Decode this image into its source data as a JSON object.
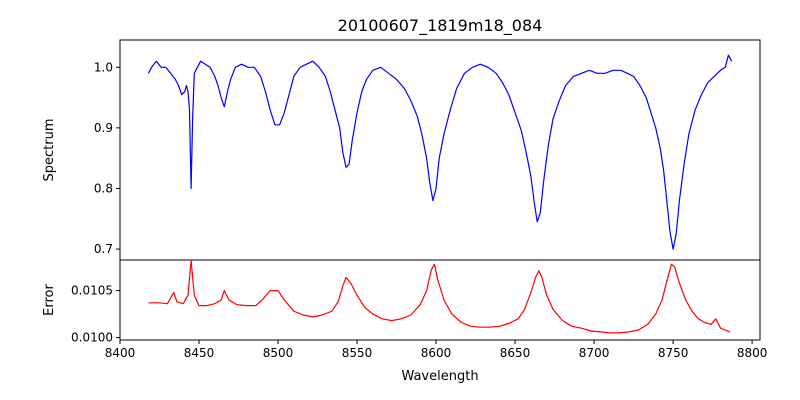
{
  "chart_data": {
    "type": "line",
    "title": "20100607_1819m18_084",
    "xlabel": "Wavelength",
    "xlim": [
      8400,
      8805
    ],
    "xticks": [
      8400,
      8450,
      8500,
      8550,
      8600,
      8650,
      8700,
      8750,
      8800
    ],
    "panels": [
      {
        "ylabel": "Spectrum",
        "ylim": [
          0.682,
          1.045
        ],
        "yticks": [
          0.7,
          0.8,
          0.9,
          1.0
        ],
        "ytick_labels": [
          "0.7",
          "0.8",
          "0.9",
          "1.0"
        ],
        "series": [
          {
            "color": "#0000ff",
            "points": [
              [
                8418,
                0.99
              ],
              [
                8420,
                1.0
              ],
              [
                8423,
                1.01
              ],
              [
                8426,
                1.0
              ],
              [
                8429,
                1.0
              ],
              [
                8432,
                0.99
              ],
              [
                8435,
                0.98
              ],
              [
                8437,
                0.97
              ],
              [
                8439,
                0.955
              ],
              [
                8441,
                0.96
              ],
              [
                8442,
                0.97
              ],
              [
                8443,
                0.96
              ],
              [
                8444,
                0.93
              ],
              [
                8445,
                0.8
              ],
              [
                8446,
                0.92
              ],
              [
                8447,
                0.99
              ],
              [
                8449,
                1.0
              ],
              [
                8451,
                1.01
              ],
              [
                8454,
                1.005
              ],
              [
                8457,
                1.0
              ],
              [
                8460,
                0.985
              ],
              [
                8462,
                0.97
              ],
              [
                8464,
                0.95
              ],
              [
                8466,
                0.935
              ],
              [
                8468,
                0.96
              ],
              [
                8470,
                0.98
              ],
              [
                8473,
                1.0
              ],
              [
                8477,
                1.005
              ],
              [
                8481,
                1.0
              ],
              [
                8485,
                1.0
              ],
              [
                8489,
                0.985
              ],
              [
                8492,
                0.96
              ],
              [
                8495,
                0.93
              ],
              [
                8498,
                0.905
              ],
              [
                8501,
                0.905
              ],
              [
                8504,
                0.925
              ],
              [
                8507,
                0.955
              ],
              [
                8510,
                0.985
              ],
              [
                8514,
                1.0
              ],
              [
                8518,
                1.005
              ],
              [
                8522,
                1.01
              ],
              [
                8526,
                1.0
              ],
              [
                8530,
                0.985
              ],
              [
                8533,
                0.96
              ],
              [
                8536,
                0.93
              ],
              [
                8539,
                0.9
              ],
              [
                8541,
                0.86
              ],
              [
                8543,
                0.835
              ],
              [
                8545,
                0.84
              ],
              [
                8547,
                0.88
              ],
              [
                8550,
                0.925
              ],
              [
                8553,
                0.96
              ],
              [
                8556,
                0.98
              ],
              [
                8560,
                0.995
              ],
              [
                8565,
                1.0
              ],
              [
                8570,
                0.99
              ],
              [
                8575,
                0.98
              ],
              [
                8580,
                0.965
              ],
              [
                8584,
                0.945
              ],
              [
                8588,
                0.92
              ],
              [
                8591,
                0.89
              ],
              [
                8594,
                0.85
              ],
              [
                8596,
                0.81
              ],
              [
                8598,
                0.78
              ],
              [
                8600,
                0.8
              ],
              [
                8602,
                0.85
              ],
              [
                8605,
                0.89
              ],
              [
                8609,
                0.93
              ],
              [
                8613,
                0.965
              ],
              [
                8618,
                0.99
              ],
              [
                8623,
                1.0
              ],
              [
                8628,
                1.005
              ],
              [
                8633,
                1.0
              ],
              [
                8638,
                0.99
              ],
              [
                8642,
                0.975
              ],
              [
                8646,
                0.955
              ],
              [
                8650,
                0.925
              ],
              [
                8654,
                0.895
              ],
              [
                8657,
                0.86
              ],
              [
                8660,
                0.82
              ],
              [
                8662,
                0.78
              ],
              [
                8664,
                0.745
              ],
              [
                8666,
                0.76
              ],
              [
                8668,
                0.81
              ],
              [
                8671,
                0.87
              ],
              [
                8674,
                0.915
              ],
              [
                8678,
                0.945
              ],
              [
                8682,
                0.97
              ],
              [
                8687,
                0.985
              ],
              [
                8692,
                0.99
              ],
              [
                8697,
                0.995
              ],
              [
                8702,
                0.99
              ],
              [
                8707,
                0.99
              ],
              [
                8712,
                0.995
              ],
              [
                8717,
                0.995
              ],
              [
                8721,
                0.99
              ],
              [
                8725,
                0.985
              ],
              [
                8729,
                0.97
              ],
              [
                8733,
                0.95
              ],
              [
                8736,
                0.925
              ],
              [
                8739,
                0.9
              ],
              [
                8742,
                0.865
              ],
              [
                8744,
                0.83
              ],
              [
                8746,
                0.78
              ],
              [
                8748,
                0.73
              ],
              [
                8750,
                0.7
              ],
              [
                8752,
                0.725
              ],
              [
                8754,
                0.78
              ],
              [
                8757,
                0.84
              ],
              [
                8760,
                0.89
              ],
              [
                8764,
                0.93
              ],
              [
                8768,
                0.955
              ],
              [
                8772,
                0.975
              ],
              [
                8776,
                0.985
              ],
              [
                8780,
                0.995
              ],
              [
                8783,
                1.0
              ],
              [
                8785,
                1.02
              ],
              [
                8787,
                1.01
              ]
            ]
          }
        ]
      },
      {
        "ylabel": "Error",
        "ylim": [
          0.009974,
          0.010825
        ],
        "yticks": [
          0.01,
          0.0105
        ],
        "ytick_labels": [
          "0.0100",
          "0.0105"
        ],
        "series": [
          {
            "color": "#ff0000",
            "points": [
              [
                8418,
                0.01037
              ],
              [
                8425,
                0.01037
              ],
              [
                8430,
                0.01036
              ],
              [
                8434,
                0.01048
              ],
              [
                8436,
                0.01038
              ],
              [
                8440,
                0.01036
              ],
              [
                8443,
                0.01045
              ],
              [
                8445,
                0.01082
              ],
              [
                8447,
                0.01045
              ],
              [
                8450,
                0.01034
              ],
              [
                8455,
                0.01034
              ],
              [
                8460,
                0.01036
              ],
              [
                8464,
                0.0104
              ],
              [
                8466,
                0.0105
              ],
              [
                8469,
                0.0104
              ],
              [
                8474,
                0.01035
              ],
              [
                8480,
                0.01034
              ],
              [
                8486,
                0.01034
              ],
              [
                8490,
                0.0104
              ],
              [
                8495,
                0.0105
              ],
              [
                8500,
                0.0105
              ],
              [
                8504,
                0.0104
              ],
              [
                8510,
                0.01028
              ],
              [
                8516,
                0.01024
              ],
              [
                8522,
                0.01022
              ],
              [
                8528,
                0.01024
              ],
              [
                8534,
                0.01028
              ],
              [
                8538,
                0.01038
              ],
              [
                8541,
                0.01055
              ],
              [
                8543,
                0.01064
              ],
              [
                8546,
                0.01058
              ],
              [
                8550,
                0.01045
              ],
              [
                8555,
                0.01032
              ],
              [
                8560,
                0.01025
              ],
              [
                8566,
                0.0102
              ],
              [
                8572,
                0.01018
              ],
              [
                8578,
                0.0102
              ],
              [
                8584,
                0.01024
              ],
              [
                8590,
                0.01035
              ],
              [
                8594,
                0.0105
              ],
              [
                8597,
                0.01072
              ],
              [
                8599,
                0.01078
              ],
              [
                8601,
                0.01062
              ],
              [
                8605,
                0.0104
              ],
              [
                8610,
                0.01025
              ],
              [
                8616,
                0.01016
              ],
              [
                8622,
                0.01012
              ],
              [
                8628,
                0.01011
              ],
              [
                8634,
                0.01011
              ],
              [
                8640,
                0.01012
              ],
              [
                8646,
                0.01015
              ],
              [
                8652,
                0.0102
              ],
              [
                8656,
                0.0103
              ],
              [
                8660,
                0.01048
              ],
              [
                8663,
                0.01064
              ],
              [
                8665,
                0.01071
              ],
              [
                8667,
                0.01064
              ],
              [
                8670,
                0.01045
              ],
              [
                8674,
                0.0103
              ],
              [
                8680,
                0.01018
              ],
              [
                8686,
                0.01012
              ],
              [
                8692,
                0.0101
              ],
              [
                8698,
                0.01007
              ],
              [
                8704,
                0.01006
              ],
              [
                8710,
                0.01005
              ],
              [
                8716,
                0.01005
              ],
              [
                8722,
                0.01006
              ],
              [
                8728,
                0.01008
              ],
              [
                8734,
                0.01014
              ],
              [
                8739,
                0.01025
              ],
              [
                8743,
                0.0104
              ],
              [
                8746,
                0.0106
              ],
              [
                8749,
                0.01078
              ],
              [
                8751,
                0.01075
              ],
              [
                8754,
                0.01058
              ],
              [
                8758,
                0.0104
              ],
              [
                8762,
                0.01028
              ],
              [
                8766,
                0.0102
              ],
              [
                8770,
                0.01016
              ],
              [
                8774,
                0.01014
              ],
              [
                8777,
                0.0102
              ],
              [
                8780,
                0.0101
              ],
              [
                8783,
                0.01008
              ],
              [
                8786,
                0.01006
              ]
            ]
          }
        ]
      }
    ]
  }
}
